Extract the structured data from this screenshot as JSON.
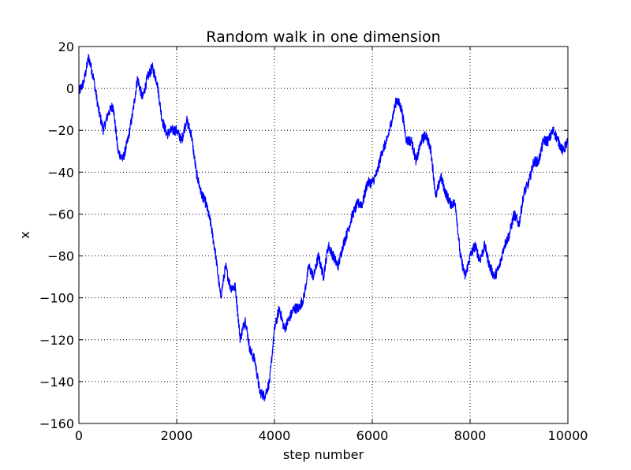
{
  "chart_data": {
    "type": "line",
    "title": "Random walk in one dimension",
    "xlabel": "step number",
    "ylabel": "x",
    "xlim": [
      0,
      10000
    ],
    "ylim": [
      -160,
      20
    ],
    "xticks": [
      0,
      2000,
      4000,
      6000,
      8000,
      10000
    ],
    "xtick_labels": [
      "0",
      "2000",
      "4000",
      "6000",
      "8000",
      "10000"
    ],
    "yticks": [
      20,
      0,
      -20,
      -40,
      -60,
      -80,
      -100,
      -120,
      -140,
      -160
    ],
    "ytick_labels": [
      "20",
      "0",
      "−20",
      "−40",
      "−60",
      "−80",
      "−100",
      "−120",
      "−140",
      "−160"
    ],
    "grid": true,
    "series": [
      {
        "color": "#0000ff",
        "x": [
          0,
          100,
          200,
          300,
          400,
          500,
          600,
          700,
          800,
          900,
          1000,
          1100,
          1200,
          1300,
          1400,
          1500,
          1600,
          1700,
          1800,
          1900,
          2000,
          2100,
          2200,
          2300,
          2400,
          2500,
          2600,
          2700,
          2800,
          2900,
          3000,
          3100,
          3200,
          3300,
          3400,
          3500,
          3600,
          3700,
          3800,
          3900,
          4000,
          4100,
          4200,
          4300,
          4400,
          4500,
          4600,
          4700,
          4800,
          4900,
          5000,
          5100,
          5200,
          5300,
          5400,
          5500,
          5600,
          5700,
          5800,
          5900,
          6000,
          6100,
          6200,
          6300,
          6400,
          6500,
          6600,
          6700,
          6800,
          6900,
          7000,
          7100,
          7200,
          7300,
          7400,
          7500,
          7600,
          7700,
          7800,
          7900,
          8000,
          8100,
          8200,
          8300,
          8400,
          8500,
          8600,
          8700,
          8800,
          8900,
          9000,
          9100,
          9200,
          9300,
          9400,
          9500,
          9600,
          9700,
          9800,
          9900,
          10000
        ],
        "y": [
          -2,
          3,
          15,
          5,
          -10,
          -20,
          -12,
          -8,
          -30,
          -34,
          -25,
          -12,
          5,
          -5,
          5,
          10,
          3,
          -15,
          -22,
          -20,
          -20,
          -25,
          -15,
          -22,
          -40,
          -50,
          -55,
          -65,
          -80,
          -100,
          -85,
          -95,
          -95,
          -120,
          -110,
          -125,
          -130,
          -145,
          -147,
          -140,
          -115,
          -105,
          -115,
          -110,
          -105,
          -105,
          -100,
          -85,
          -90,
          -80,
          -90,
          -75,
          -80,
          -85,
          -75,
          -68,
          -60,
          -55,
          -55,
          -45,
          -45,
          -40,
          -30,
          -25,
          -15,
          -5,
          -10,
          -25,
          -25,
          -35,
          -25,
          -22,
          -30,
          -52,
          -42,
          -50,
          -55,
          -55,
          -80,
          -90,
          -80,
          -75,
          -82,
          -75,
          -85,
          -90,
          -85,
          -75,
          -70,
          -60,
          -65,
          -50,
          -45,
          -35,
          -35,
          -25,
          -25,
          -20,
          -25,
          -30,
          -25
        ]
      }
    ]
  }
}
